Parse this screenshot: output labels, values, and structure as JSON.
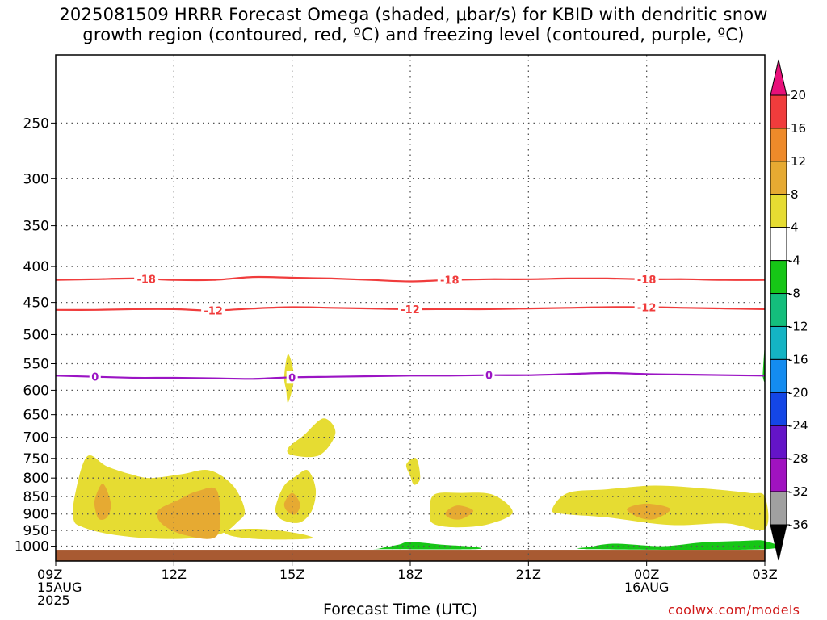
{
  "title": {
    "line1": "2025081509 HRRR Forecast Omega (shaded, μbar/s) for KBID with dendritic snow",
    "line2": "growth region (contoured, red, ºC) and freezing level (contoured, purple, ºC)"
  },
  "xlabel": "Forecast Time (UTC)",
  "credit": "coolwx.com/models",
  "chart_data": {
    "type": "heatmap",
    "x_axis": {
      "range_hours_after_09Z": [
        0,
        18
      ],
      "ticks": [
        {
          "h": 0,
          "lines": [
            "09Z",
            "15AUG",
            "2025"
          ]
        },
        {
          "h": 3,
          "lines": [
            "12Z"
          ]
        },
        {
          "h": 6,
          "lines": [
            "15Z"
          ]
        },
        {
          "h": 9,
          "lines": [
            "18Z"
          ]
        },
        {
          "h": 12,
          "lines": [
            "21Z"
          ]
        },
        {
          "h": 15,
          "lines": [
            "00Z",
            "16AUG"
          ]
        },
        {
          "h": 18,
          "lines": [
            "03Z"
          ]
        }
      ]
    },
    "y_axis": {
      "scale": "log-pressure",
      "range_hPa": [
        1050,
        200
      ],
      "ticks": [
        "250",
        "300",
        "350",
        "400",
        "450",
        "500",
        "550",
        "600",
        "650",
        "700",
        "750",
        "800",
        "850",
        "900",
        "950",
        "1000"
      ]
    },
    "colorbar": {
      "labels": [
        "20",
        "16",
        "12",
        "8",
        "4",
        "-4",
        "-8",
        "-12",
        "-16",
        "-20",
        "-24",
        "-28",
        "-32",
        "-36"
      ],
      "colors": [
        "#e8107a",
        "#f03c3c",
        "#ee8a2a",
        "#e6aa32",
        "#e6dc32",
        "#ffffff",
        "#16c616",
        "#14be7c",
        "#14b4c4",
        "#148cf0",
        "#1446e6",
        "#6414c8",
        "#a012c0",
        "#a0a0a0",
        "#000000"
      ]
    },
    "contours": [
      {
        "name": "-18",
        "color": "#f03c3c",
        "hPa": [
          418,
          417,
          416,
          418,
          418,
          414,
          415,
          416,
          418,
          420,
          418,
          417,
          417,
          416,
          416,
          417,
          417,
          418,
          418
        ],
        "labels_at_h": [
          2.3,
          10.0,
          15.0
        ]
      },
      {
        "name": "-12",
        "color": "#f03c3c",
        "hPa": [
          461,
          461,
          460,
          460,
          462,
          459,
          457,
          458,
          459,
          460,
          460,
          460,
          459,
          458,
          457,
          457,
          458,
          459,
          460
        ],
        "labels_at_h": [
          4.0,
          9.0,
          15.0
        ]
      },
      {
        "name": "0",
        "color": "#9b14c4",
        "hPa": [
          572,
          574,
          576,
          576,
          577,
          578,
          575,
          574,
          573,
          572,
          572,
          571,
          571,
          569,
          567,
          569,
          570,
          571,
          572
        ],
        "labels_at_h": [
          1.0,
          6.0,
          11.0
        ]
      }
    ],
    "omega_regions": [
      {
        "level": "4 to 8",
        "pts": [
          [
            0.45,
            915
          ],
          [
            0.5,
            840
          ],
          [
            0.8,
            745
          ],
          [
            1.3,
            770
          ],
          [
            1.9,
            790
          ],
          [
            2.4,
            800
          ],
          [
            3.2,
            790
          ],
          [
            3.9,
            780
          ],
          [
            4.5,
            820
          ],
          [
            4.8,
            890
          ],
          [
            4.6,
            925
          ],
          [
            4.2,
            960
          ],
          [
            3.4,
            975
          ],
          [
            2.4,
            975
          ],
          [
            1.4,
            962
          ],
          [
            0.7,
            940
          ]
        ]
      },
      {
        "level": "8 to 12",
        "pts": [
          [
            1.0,
            855
          ],
          [
            1.2,
            815
          ],
          [
            1.4,
            870
          ],
          [
            1.3,
            910
          ],
          [
            1.1,
            915
          ],
          [
            1.0,
            885
          ]
        ]
      },
      {
        "level": "8 to 12",
        "pts": [
          [
            2.6,
            890
          ],
          [
            3.1,
            860
          ],
          [
            3.6,
            835
          ],
          [
            4.1,
            835
          ],
          [
            4.1,
            965
          ],
          [
            3.3,
            965
          ],
          [
            2.7,
            930
          ]
        ]
      },
      {
        "level": "4 to 8",
        "pts": [
          [
            4.3,
            950
          ],
          [
            5.2,
            945
          ],
          [
            6.1,
            958
          ],
          [
            6.5,
            975
          ],
          [
            5.3,
            978
          ],
          [
            4.5,
            968
          ]
        ]
      },
      {
        "level": "4 to 8",
        "pts": [
          [
            5.6,
            870
          ],
          [
            5.8,
            820
          ],
          [
            6.1,
            795
          ],
          [
            6.4,
            780
          ],
          [
            6.6,
            830
          ],
          [
            6.5,
            890
          ],
          [
            6.2,
            925
          ],
          [
            5.8,
            920
          ],
          [
            5.6,
            900
          ]
        ]
      },
      {
        "level": "8 to 12",
        "pts": [
          [
            5.8,
            870
          ],
          [
            6.0,
            840
          ],
          [
            6.2,
            870
          ],
          [
            6.1,
            900
          ],
          [
            5.9,
            895
          ]
        ]
      },
      {
        "level": "4 to 8",
        "pts": [
          [
            5.9,
            725
          ],
          [
            6.3,
            695
          ],
          [
            6.8,
            658
          ],
          [
            7.1,
            690
          ],
          [
            6.7,
            742
          ],
          [
            6.0,
            742
          ]
        ]
      },
      {
        "level": "4 to 8",
        "pts": [
          [
            5.8,
            574
          ],
          [
            5.9,
            533
          ],
          [
            6.05,
            575
          ],
          [
            5.9,
            625
          ],
          [
            5.85,
            600
          ]
        ]
      },
      {
        "level": "4 to 8",
        "pts": [
          [
            8.9,
            765
          ],
          [
            9.15,
            750
          ],
          [
            9.25,
            800
          ],
          [
            9.1,
            818
          ],
          [
            9.0,
            795
          ]
        ]
      },
      {
        "level": "4 to 8",
        "pts": [
          [
            9.5,
            900
          ],
          [
            9.6,
            845
          ],
          [
            10.3,
            840
          ],
          [
            11.1,
            845
          ],
          [
            11.6,
            895
          ],
          [
            11.0,
            930
          ],
          [
            10.2,
            940
          ],
          [
            9.6,
            930
          ]
        ]
      },
      {
        "level": "8 to 12",
        "pts": [
          [
            9.9,
            895
          ],
          [
            10.2,
            875
          ],
          [
            10.6,
            890
          ],
          [
            10.3,
            915
          ],
          [
            10.0,
            912
          ]
        ]
      },
      {
        "level": "4 to 8",
        "pts": [
          [
            12.6,
            888
          ],
          [
            13.0,
            840
          ],
          [
            14.0,
            830
          ],
          [
            15.2,
            820
          ],
          [
            16.5,
            828
          ],
          [
            17.6,
            840
          ],
          [
            18.0,
            850
          ],
          [
            18.0,
            945
          ],
          [
            17.0,
            928
          ],
          [
            15.6,
            933
          ],
          [
            14.0,
            910
          ],
          [
            12.9,
            900
          ]
        ]
      },
      {
        "level": "8 to 12",
        "pts": [
          [
            14.5,
            885
          ],
          [
            15.0,
            870
          ],
          [
            15.6,
            885
          ],
          [
            15.2,
            915
          ],
          [
            14.8,
            910
          ]
        ]
      },
      {
        "level": "-4 to -8",
        "pts": [
          [
            8.2,
            1008
          ],
          [
            8.7,
            995
          ],
          [
            9.0,
            986
          ],
          [
            9.8,
            995
          ],
          [
            10.6,
            1002
          ],
          [
            10.6,
            1010
          ],
          [
            8.2,
            1010
          ]
        ]
      },
      {
        "level": "-4 to -8",
        "pts": [
          [
            13.6,
            1002
          ],
          [
            14.2,
            992
          ],
          [
            15.4,
            1000
          ],
          [
            16.4,
            988
          ],
          [
            17.4,
            983
          ],
          [
            18.0,
            983
          ],
          [
            18.0,
            1010
          ],
          [
            13.6,
            1010
          ]
        ]
      },
      {
        "level": "-4 to -8",
        "pts": [
          [
            17.95,
            565
          ],
          [
            18.0,
            520
          ],
          [
            18.0,
            580
          ],
          [
            17.95,
            575
          ]
        ]
      }
    ],
    "terrain": {
      "color": "#a85a32",
      "below_hPa": 1012
    },
    "grid": true
  }
}
